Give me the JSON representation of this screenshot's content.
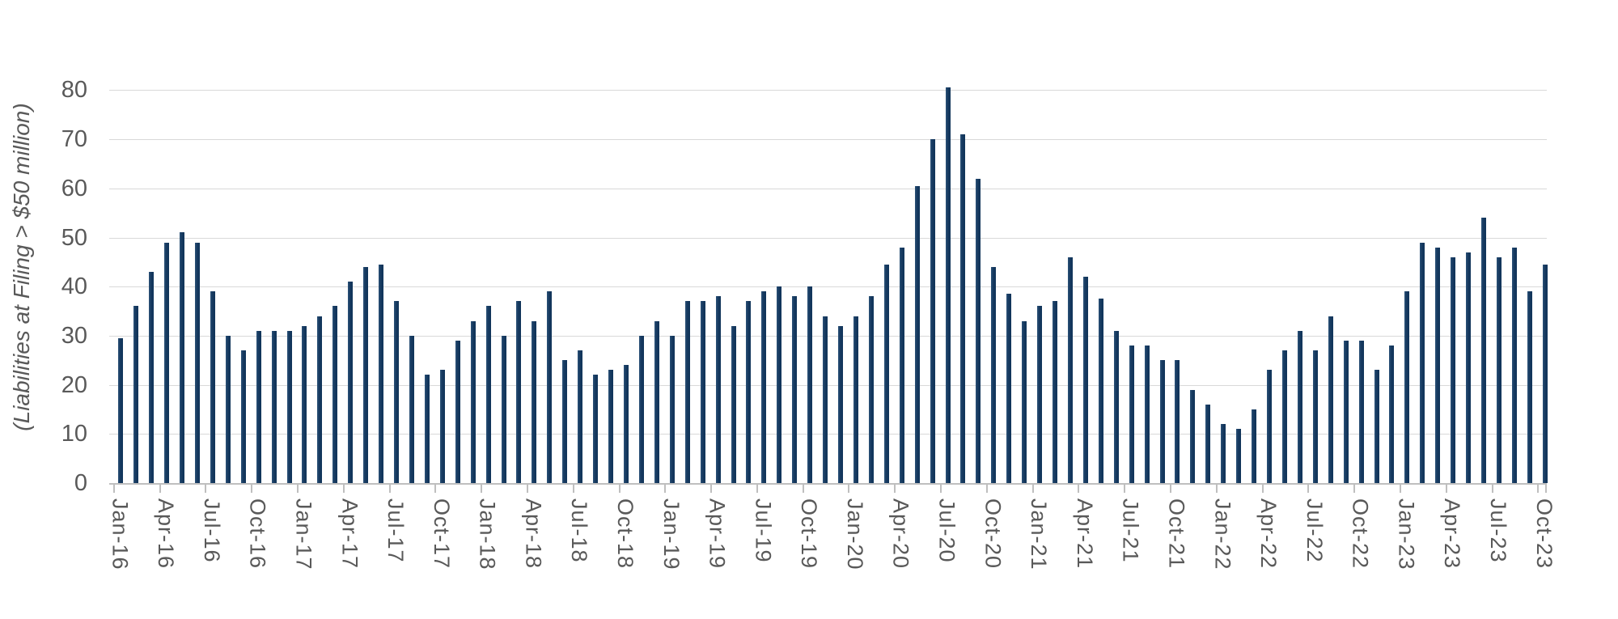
{
  "chart_data": {
    "type": "bar",
    "title": "",
    "ylabel": "(Liabilities at Filing > $50 million)",
    "xlabel": "",
    "ylim": [
      0,
      80
    ],
    "yticks": [
      0,
      10,
      20,
      30,
      40,
      50,
      60,
      70,
      80
    ],
    "grid": "horizontal",
    "legend": "none",
    "x_tick_every": 3,
    "colors": {
      "bar": "#16395f",
      "gridline": "#d9d9d9",
      "axis": "#bfbfbf",
      "label": "#595959"
    },
    "categories": [
      "Jan-16",
      "Feb-16",
      "Mar-16",
      "Apr-16",
      "May-16",
      "Jun-16",
      "Jul-16",
      "Aug-16",
      "Sep-16",
      "Oct-16",
      "Nov-16",
      "Dec-16",
      "Jan-17",
      "Feb-17",
      "Mar-17",
      "Apr-17",
      "May-17",
      "Jun-17",
      "Jul-17",
      "Aug-17",
      "Sep-17",
      "Oct-17",
      "Nov-17",
      "Dec-17",
      "Jan-18",
      "Feb-18",
      "Mar-18",
      "Apr-18",
      "May-18",
      "Jun-18",
      "Jul-18",
      "Aug-18",
      "Sep-18",
      "Oct-18",
      "Nov-18",
      "Dec-18",
      "Jan-19",
      "Feb-19",
      "Mar-19",
      "Apr-19",
      "May-19",
      "Jun-19",
      "Jul-19",
      "Aug-19",
      "Sep-19",
      "Oct-19",
      "Nov-19",
      "Dec-19",
      "Jan-20",
      "Feb-20",
      "Mar-20",
      "Apr-20",
      "May-20",
      "Jun-20",
      "Jul-20",
      "Aug-20",
      "Sep-20",
      "Oct-20",
      "Nov-20",
      "Dec-20",
      "Jan-21",
      "Feb-21",
      "Mar-21",
      "Apr-21",
      "May-21",
      "Jun-21",
      "Jul-21",
      "Aug-21",
      "Sep-21",
      "Oct-21",
      "Nov-21",
      "Dec-21",
      "Jan-22",
      "Feb-22",
      "Mar-22",
      "Apr-22",
      "May-22",
      "Jun-22",
      "Jul-22",
      "Aug-22",
      "Sep-22",
      "Oct-22",
      "Nov-22",
      "Dec-22",
      "Jan-23",
      "Feb-23",
      "Mar-23",
      "Apr-23",
      "May-23",
      "Jun-23",
      "Jul-23",
      "Aug-23",
      "Sep-23",
      "Oct-23"
    ],
    "values": [
      29.5,
      36,
      43,
      49,
      51,
      49,
      39,
      30,
      27,
      31,
      31,
      31,
      32,
      34,
      36,
      41,
      44,
      44.5,
      37,
      30,
      22,
      23,
      29,
      33,
      36,
      30,
      37,
      33,
      39,
      25,
      27,
      22,
      23,
      24,
      30,
      33,
      30,
      37,
      37,
      38,
      32,
      37,
      39,
      40,
      38,
      40,
      34,
      32,
      34,
      38,
      44.5,
      48,
      60.5,
      70,
      80.5,
      71,
      62,
      44,
      38.5,
      33,
      36,
      37,
      46,
      42,
      37.5,
      31,
      28,
      28,
      25,
      25,
      19,
      16,
      12,
      11,
      15,
      23,
      27,
      31,
      27,
      34,
      29,
      29,
      23,
      28,
      39,
      49,
      48,
      46,
      47,
      54,
      46,
      48,
      39,
      44.5
    ]
  }
}
